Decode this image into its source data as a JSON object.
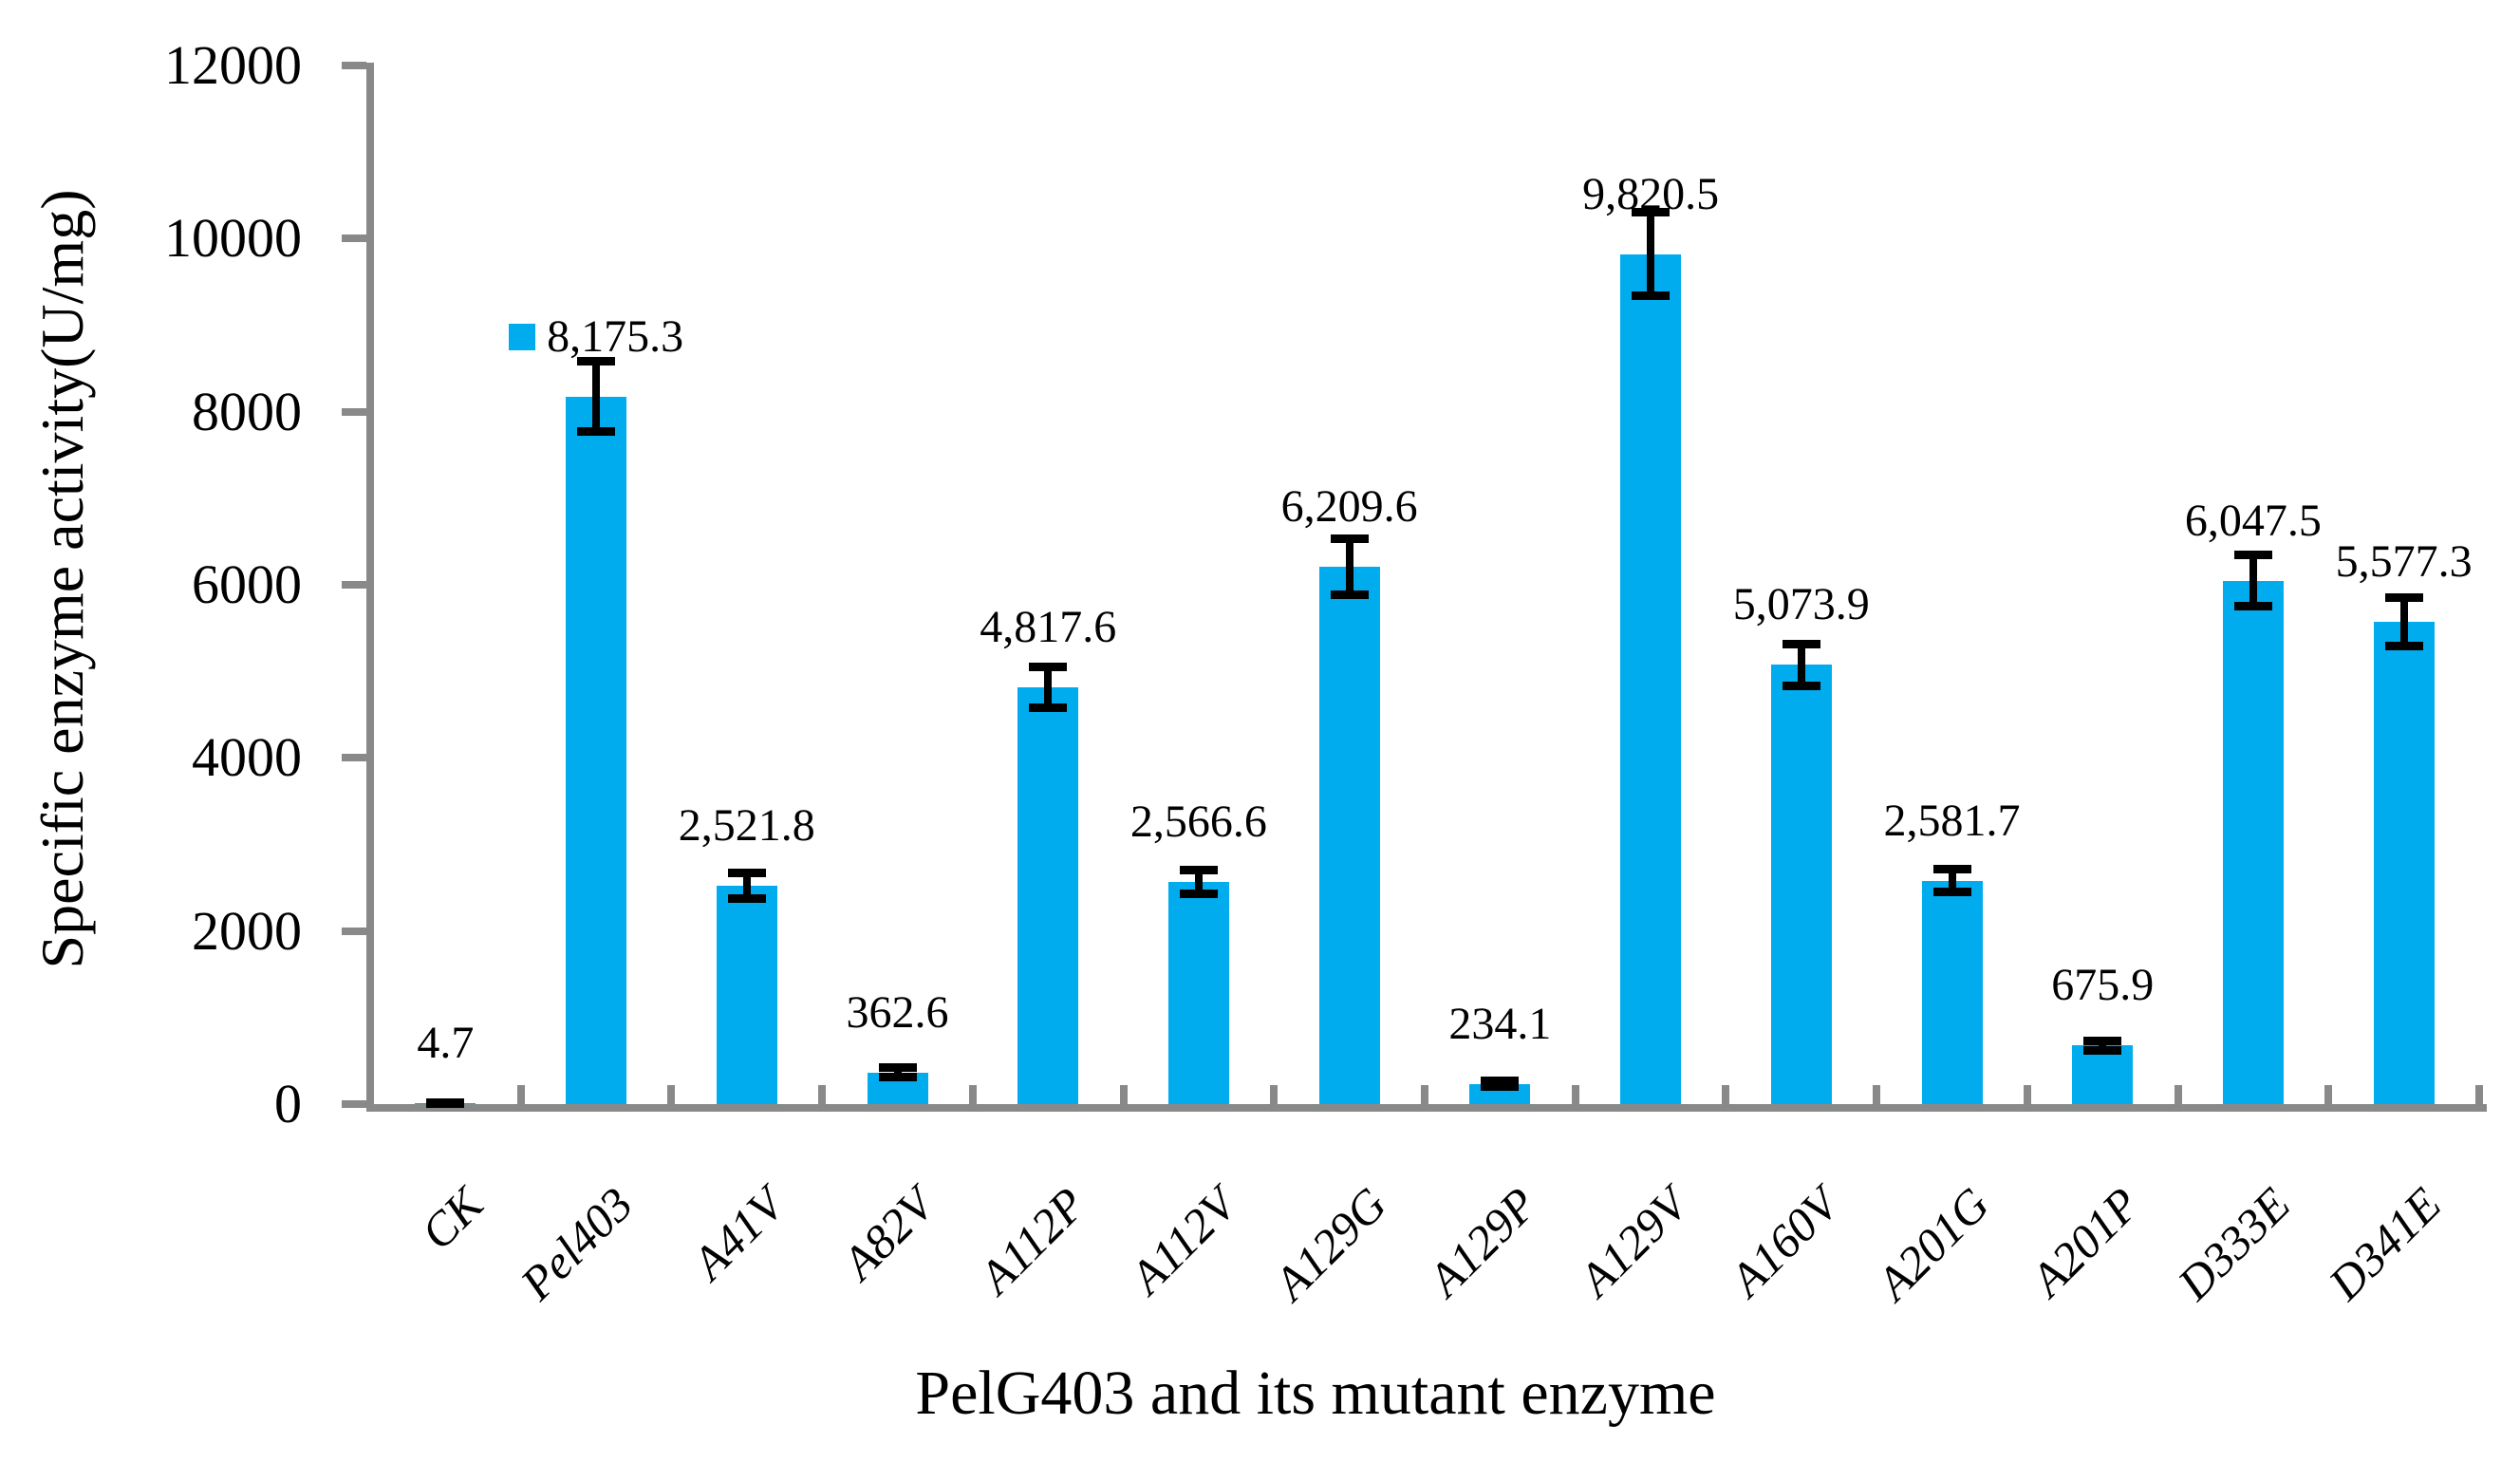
{
  "chart_data": {
    "type": "bar",
    "title": "",
    "xlabel": "PelG403 and its mutant enzyme",
    "ylabel": "Specific enzyme activity(U/mg)",
    "ylim": [
      0,
      12000
    ],
    "ytick_interval": 2000,
    "ytick_labels": [
      "0",
      "2000",
      "4000",
      "6000",
      "8000",
      "10000",
      "12000"
    ],
    "grid": "off",
    "legend_position": "none",
    "legend_key_on_label_index": 1,
    "categories": [
      "CK",
      "Pel403",
      "A41V",
      "A82V",
      "A112P",
      "A112V",
      "A129G",
      "A129P",
      "A129V",
      "A160V",
      "A201G",
      "A201P",
      "D333E",
      "D341E"
    ],
    "values": [
      4.7,
      8175.3,
      2521.8,
      362.6,
      4817.6,
      2566.6,
      6209.6,
      234.1,
      9820.5,
      5073.9,
      2581.7,
      675.9,
      6047.5,
      5577.3
    ],
    "value_labels": [
      "4.7",
      "8,175.3",
      "2,521.8",
      "362.6",
      "4,817.6",
      "2,566.6",
      "6,209.6",
      "234.1",
      "9,820.5",
      "5,073.9",
      "2,581.7",
      "675.9",
      "6,047.5",
      "5,577.3"
    ],
    "error_bars": [
      20,
      410,
      150,
      60,
      240,
      140,
      325,
      40,
      490,
      245,
      140,
      60,
      300,
      285
    ],
    "colors": {
      "bar": "#00ACEE",
      "axis": "#898989",
      "error_bar": "#000000",
      "text": "#000000",
      "background": "#ffffff"
    }
  }
}
